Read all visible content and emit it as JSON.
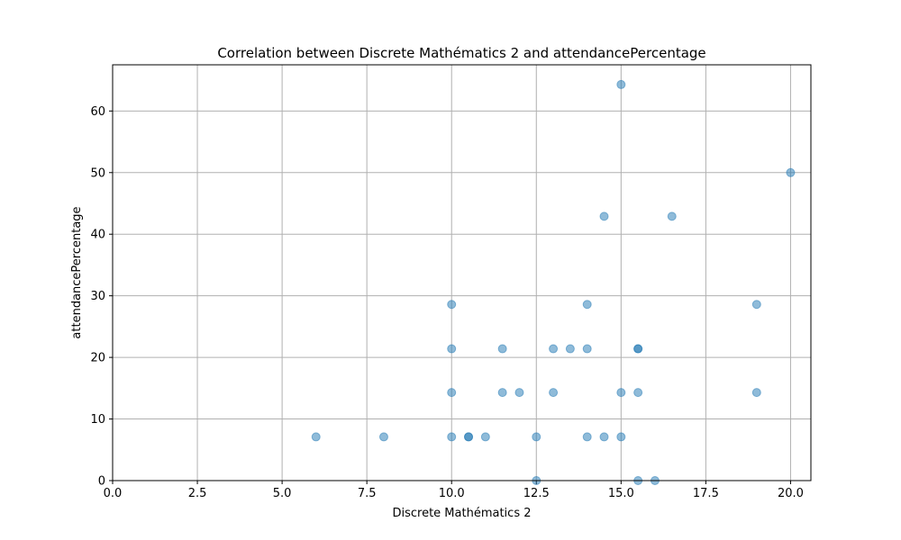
{
  "chart_data": {
    "type": "scatter",
    "title": "Correlation between Discrete Mathématics 2 and attendancePercentage",
    "xlabel": "Discrete Mathématics 2",
    "ylabel": "attendancePercentage",
    "xlim": [
      0,
      20.6
    ],
    "ylim": [
      0,
      67.5
    ],
    "xticks": [
      0,
      2.5,
      5,
      7.5,
      10,
      12.5,
      15,
      17.5,
      20
    ],
    "xtick_labels": [
      "0.0",
      "2.5",
      "5.0",
      "7.5",
      "10.0",
      "12.5",
      "15.0",
      "17.5",
      "20.0"
    ],
    "yticks": [
      0,
      10,
      20,
      30,
      40,
      50,
      60
    ],
    "ytick_labels": [
      "0",
      "10",
      "20",
      "30",
      "40",
      "50",
      "60"
    ],
    "grid": true,
    "point_color": "#1f77b4",
    "point_alpha": 0.5,
    "points": [
      {
        "x": 15.0,
        "y": 64.3
      },
      {
        "x": 20.0,
        "y": 50.0
      },
      {
        "x": 14.5,
        "y": 42.9
      },
      {
        "x": 16.5,
        "y": 42.9
      },
      {
        "x": 10.0,
        "y": 28.6
      },
      {
        "x": 14.0,
        "y": 28.6
      },
      {
        "x": 19.0,
        "y": 28.6
      },
      {
        "x": 10.0,
        "y": 21.4
      },
      {
        "x": 11.5,
        "y": 21.4
      },
      {
        "x": 13.0,
        "y": 21.4
      },
      {
        "x": 13.5,
        "y": 21.4
      },
      {
        "x": 14.0,
        "y": 21.4
      },
      {
        "x": 15.5,
        "y": 21.4
      },
      {
        "x": 15.5,
        "y": 21.4
      },
      {
        "x": 10.0,
        "y": 14.3
      },
      {
        "x": 11.5,
        "y": 14.3
      },
      {
        "x": 12.0,
        "y": 14.3
      },
      {
        "x": 13.0,
        "y": 14.3
      },
      {
        "x": 15.0,
        "y": 14.3
      },
      {
        "x": 15.5,
        "y": 14.3
      },
      {
        "x": 19.0,
        "y": 14.3
      },
      {
        "x": 6.0,
        "y": 7.1
      },
      {
        "x": 8.0,
        "y": 7.1
      },
      {
        "x": 10.0,
        "y": 7.1
      },
      {
        "x": 10.5,
        "y": 7.1
      },
      {
        "x": 10.5,
        "y": 7.1
      },
      {
        "x": 11.0,
        "y": 7.1
      },
      {
        "x": 12.5,
        "y": 7.1
      },
      {
        "x": 14.0,
        "y": 7.1
      },
      {
        "x": 14.5,
        "y": 7.1
      },
      {
        "x": 15.0,
        "y": 7.1
      },
      {
        "x": 12.5,
        "y": 0.0
      },
      {
        "x": 15.5,
        "y": 0.0
      },
      {
        "x": 16.0,
        "y": 0.0
      }
    ]
  }
}
